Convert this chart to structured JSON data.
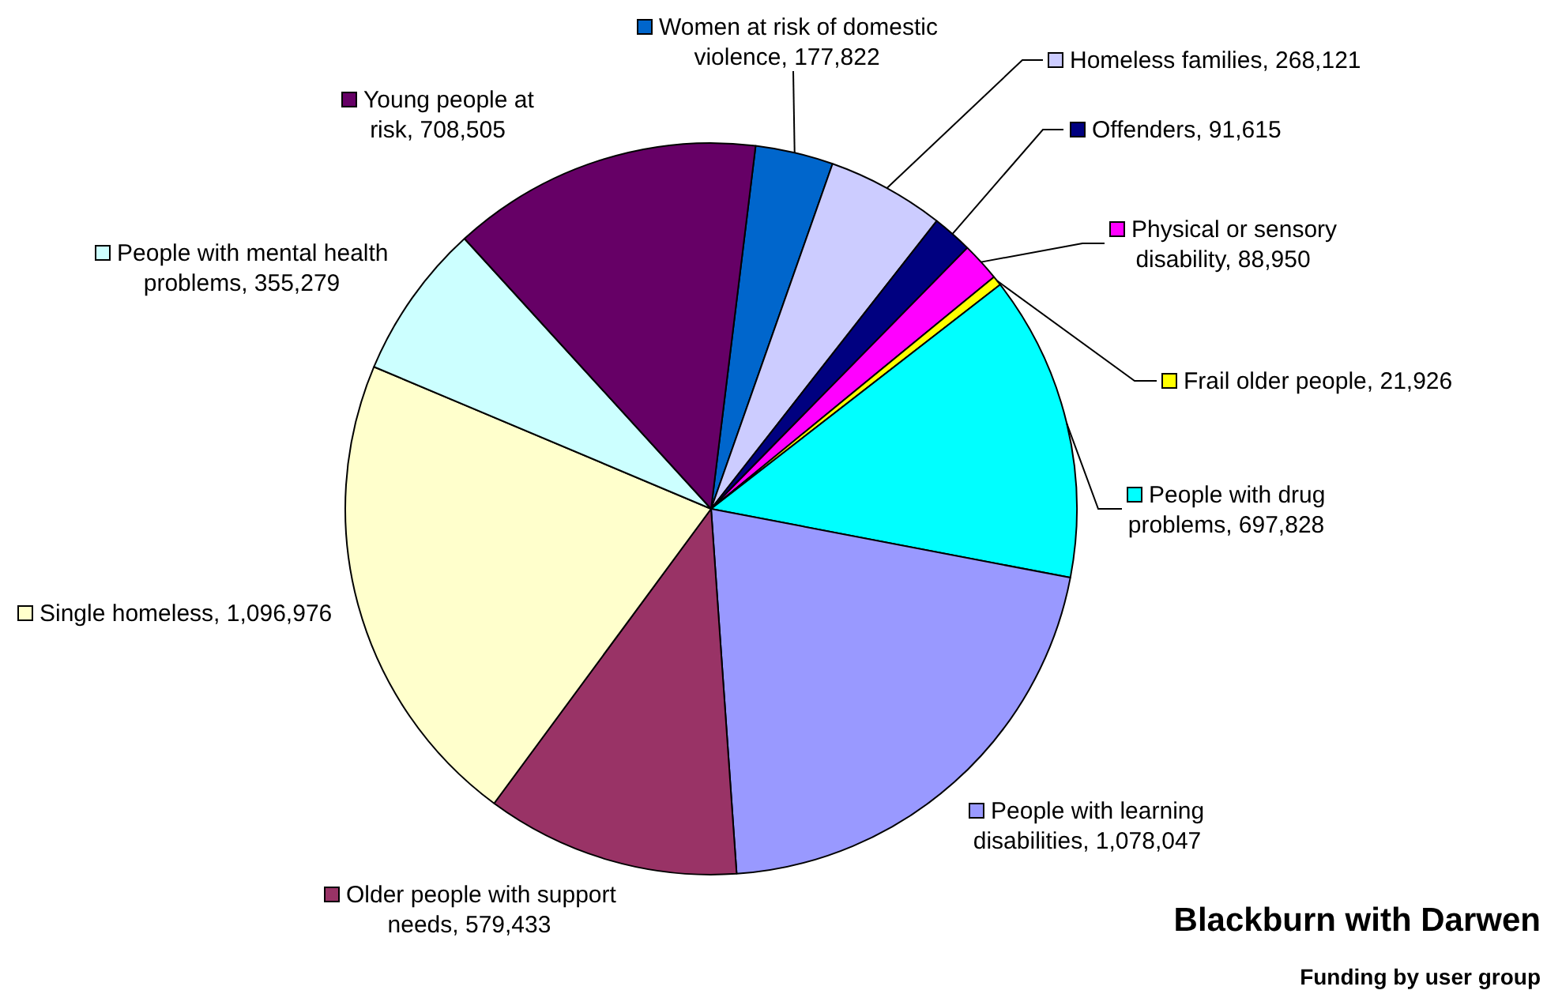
{
  "chart_data": {
    "type": "pie",
    "title": "Blackburn with Darwen",
    "subtitle": "Funding by user group",
    "categories": [
      "Women at risk of domestic violence",
      "Homeless families",
      "Offenders",
      "Physical or sensory disability",
      "Frail older people",
      "People with drug problems",
      "People with learning disabilities",
      "Older people with support needs",
      "Single homeless",
      "People with mental health problems",
      "Young people at risk"
    ],
    "values": [
      177822,
      268121,
      91615,
      88950,
      21926,
      697828,
      1078047,
      579433,
      1096976,
      355279,
      708505
    ],
    "value_labels": [
      "177,822",
      "268,121",
      "91,615",
      "88,950",
      "21,926",
      "697,828",
      "1,078,047",
      "579,433",
      "1,096,976",
      "355,279",
      "708,505"
    ],
    "colors": [
      "#0066cc",
      "#ccccff",
      "#000080",
      "#ff00ff",
      "#ffff00",
      "#00ffff",
      "#9999ff",
      "#993366",
      "#ffffcc",
      "#ccffff",
      "#660066"
    ],
    "legend": "right"
  }
}
